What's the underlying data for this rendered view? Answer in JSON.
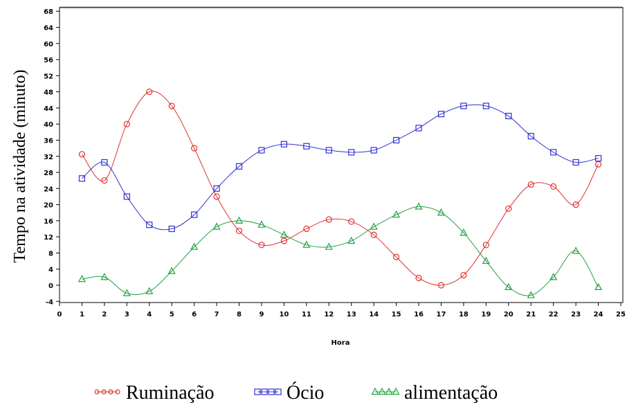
{
  "chart_data": {
    "type": "line",
    "xlabel": "Hora",
    "ylabel": "Tempo na atividade (minuto)",
    "xlim": [
      0,
      25
    ],
    "ylim": [
      -4,
      68
    ],
    "xticks": [
      0,
      1,
      2,
      3,
      4,
      5,
      6,
      7,
      8,
      9,
      10,
      11,
      12,
      13,
      14,
      15,
      16,
      17,
      18,
      19,
      20,
      21,
      22,
      23,
      24,
      25
    ],
    "yticks": [
      -4,
      0,
      4,
      8,
      12,
      16,
      20,
      24,
      28,
      32,
      36,
      40,
      44,
      48,
      52,
      56,
      60,
      64,
      68
    ],
    "grid": false,
    "legend_position": "bottom",
    "x": [
      1,
      2,
      3,
      4,
      5,
      6,
      7,
      8,
      9,
      10,
      11,
      12,
      13,
      14,
      15,
      16,
      17,
      18,
      19,
      20,
      21,
      22,
      23,
      24
    ],
    "series": [
      {
        "name": "Ruminação",
        "color": "#e03030",
        "marker": "circle",
        "values": [
          32.5,
          26,
          40,
          48,
          44.5,
          34,
          22,
          13.5,
          10,
          11,
          14,
          16.3,
          15.8,
          12.5,
          7,
          1.8,
          0,
          2.5,
          10,
          19,
          25,
          24.5,
          20,
          30
        ]
      },
      {
        "name": "Ócio",
        "color": "#3030d0",
        "marker": "square",
        "values": [
          26.5,
          30.5,
          22,
          15,
          14,
          17.5,
          24,
          29.5,
          33.5,
          35,
          34.5,
          33.5,
          33,
          33.5,
          36,
          39,
          42.5,
          44.5,
          44.5,
          42,
          37,
          33,
          30.5,
          31.5
        ]
      },
      {
        "name": "alimentação",
        "color": "#20a040",
        "marker": "triangle",
        "values": [
          1.5,
          2,
          -2,
          -1.5,
          3.5,
          9.5,
          14.5,
          16,
          15,
          12.5,
          10,
          9.5,
          11,
          14.5,
          17.5,
          19.5,
          18,
          13,
          6,
          -0.5,
          -2.5,
          2,
          8.5,
          -0.5
        ]
      }
    ]
  }
}
